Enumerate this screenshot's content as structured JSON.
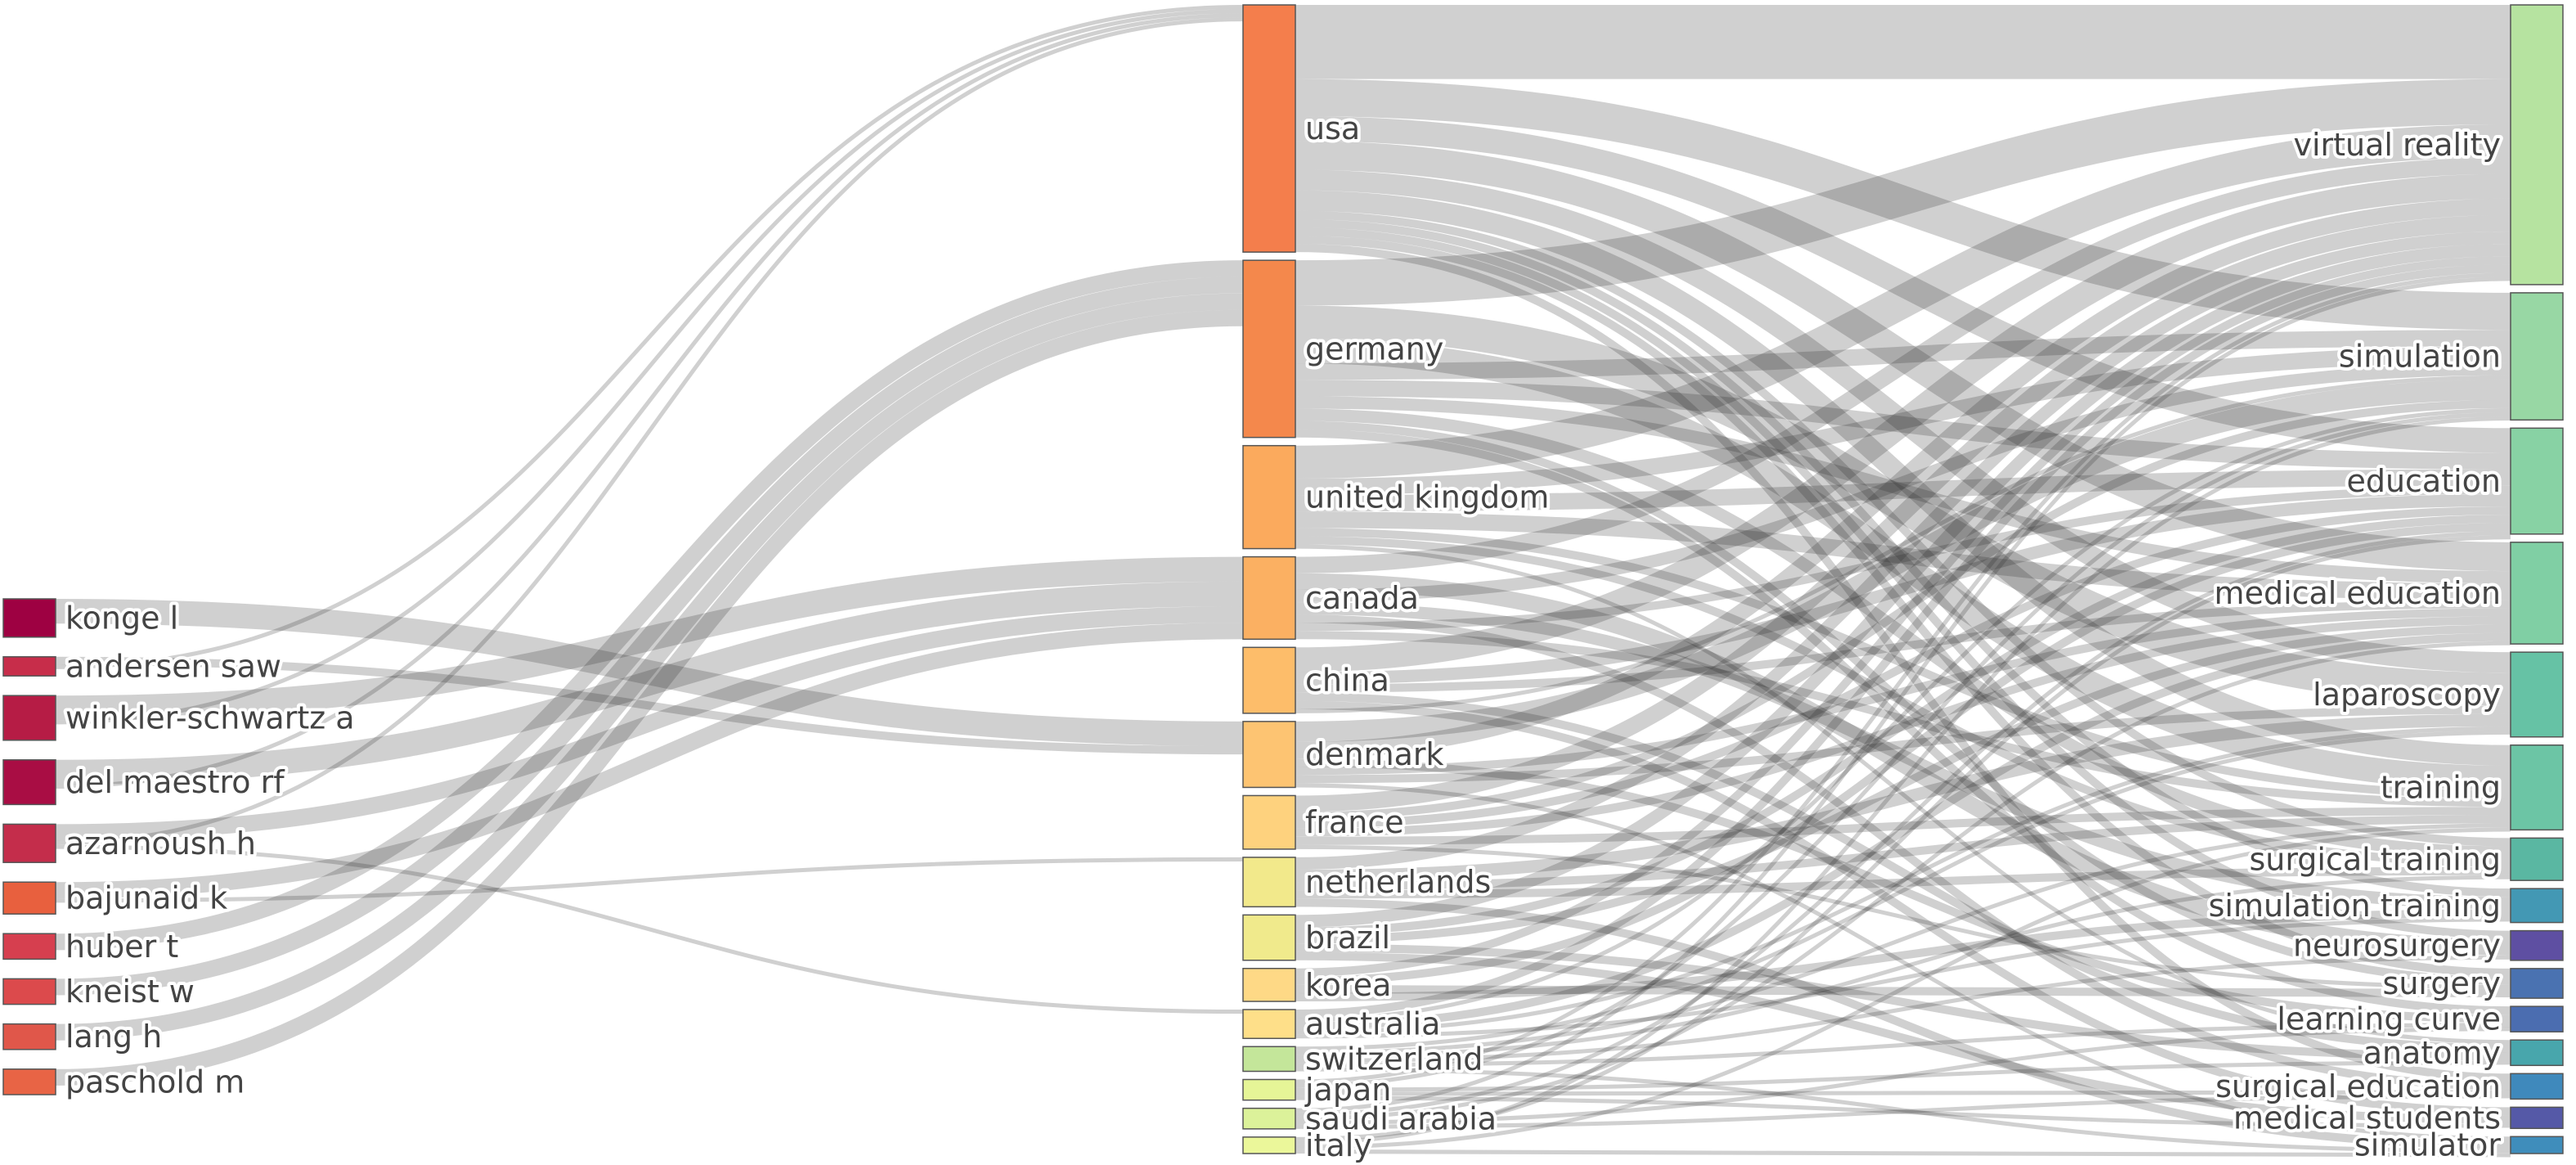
{
  "chart_data": {
    "type": "sankey",
    "columns": [
      "authors",
      "countries",
      "keywords"
    ],
    "nodes": {
      "authors": [
        {
          "id": "konge-l",
          "label": "konge l",
          "value": 6,
          "color": "#9e0142"
        },
        {
          "id": "andersen-saw",
          "label": "andersen saw",
          "value": 3,
          "color": "#c72d4a"
        },
        {
          "id": "winkler-schwartz-a",
          "label": "winkler-schwartz a",
          "value": 7,
          "color": "#b61c45"
        },
        {
          "id": "del-maestro-rf",
          "label": "del maestro rf",
          "value": 7,
          "color": "#a90d44"
        },
        {
          "id": "azarnoush-h",
          "label": "azarnoush h",
          "value": 6,
          "color": "#c42d4b"
        },
        {
          "id": "bajunaid-k",
          "label": "bajunaid k",
          "value": 5,
          "color": "#e8603e"
        },
        {
          "id": "huber-t",
          "label": "huber t",
          "value": 4,
          "color": "#d63f4f"
        },
        {
          "id": "kneist-w",
          "label": "kneist w",
          "value": 4,
          "color": "#dc4a4c"
        },
        {
          "id": "lang-h",
          "label": "lang h",
          "value": 4,
          "color": "#e0574a"
        },
        {
          "id": "paschold-m",
          "label": "paschold m",
          "value": 4,
          "color": "#e86445"
        }
      ],
      "countries": [
        {
          "id": "usa",
          "label": "usa",
          "value": 60,
          "color": "#f47e4c"
        },
        {
          "id": "germany",
          "label": "germany",
          "value": 43,
          "color": "#f4884c"
        },
        {
          "id": "united-kingdom",
          "label": "united kingdom",
          "value": 25,
          "color": "#fbaa5d"
        },
        {
          "id": "canada",
          "label": "canada",
          "value": 20,
          "color": "#fbb062"
        },
        {
          "id": "china",
          "label": "china",
          "value": 16,
          "color": "#fdbd6a"
        },
        {
          "id": "denmark",
          "label": "denmark",
          "value": 16,
          "color": "#fdc472"
        },
        {
          "id": "france",
          "label": "france",
          "value": 13,
          "color": "#fed27e"
        },
        {
          "id": "netherlands",
          "label": "netherlands",
          "value": 12,
          "color": "#f2e98b"
        },
        {
          "id": "brazil",
          "label": "brazil",
          "value": 11,
          "color": "#f0ea8c"
        },
        {
          "id": "korea",
          "label": "korea",
          "value": 8,
          "color": "#fed986"
        },
        {
          "id": "australia",
          "label": "australia",
          "value": 7,
          "color": "#fedf89"
        },
        {
          "id": "switzerland",
          "label": "switzerland",
          "value": 6,
          "color": "#c4e69a"
        },
        {
          "id": "japan",
          "label": "japan",
          "value": 5,
          "color": "#e6f597"
        },
        {
          "id": "saudi-arabia",
          "label": "saudi arabia",
          "value": 5,
          "color": "#dcf29a"
        },
        {
          "id": "italy",
          "label": "italy",
          "value": 4,
          "color": "#ebf79a"
        }
      ],
      "keywords": [
        {
          "id": "virtual-reality",
          "label": "virtual reality",
          "value": 66,
          "color": "#b6e3a0"
        },
        {
          "id": "simulation",
          "label": "simulation",
          "value": 30,
          "color": "#98d7a4"
        },
        {
          "id": "education",
          "label": "education",
          "value": 25,
          "color": "#88d2a4"
        },
        {
          "id": "medical-education",
          "label": "medical education",
          "value": 24,
          "color": "#80cfa4"
        },
        {
          "id": "laparoscopy",
          "label": "laparoscopy",
          "value": 20,
          "color": "#66c2a5"
        },
        {
          "id": "training",
          "label": "training",
          "value": 20,
          "color": "#6cc5a5"
        },
        {
          "id": "surgical-training",
          "label": "surgical training",
          "value": 10,
          "color": "#5ab7a2"
        },
        {
          "id": "simulation-training",
          "label": "simulation training",
          "value": 8,
          "color": "#4398b4"
        },
        {
          "id": "neurosurgery",
          "label": "neurosurgery",
          "value": 7,
          "color": "#5e4fa2"
        },
        {
          "id": "surgery",
          "label": "surgery",
          "value": 7,
          "color": "#4a72b1"
        },
        {
          "id": "learning-curve",
          "label": "learning curve",
          "value": 6,
          "color": "#4b6db0"
        },
        {
          "id": "anatomy",
          "label": "anatomy",
          "value": 6,
          "color": "#48a6ac"
        },
        {
          "id": "surgical-education",
          "label": "surgical education",
          "value": 6,
          "color": "#3f89bc"
        },
        {
          "id": "medical-students",
          "label": "medical students",
          "value": 5,
          "color": "#5559a7"
        },
        {
          "id": "simulator",
          "label": "simulator",
          "value": 4,
          "color": "#3f8dbb"
        }
      ]
    },
    "links": [
      {
        "source": "konge-l",
        "target": "denmark",
        "value": 6
      },
      {
        "source": "andersen-saw",
        "target": "denmark",
        "value": 2
      },
      {
        "source": "andersen-saw",
        "target": "usa",
        "value": 1
      },
      {
        "source": "winkler-schwartz-a",
        "target": "canada",
        "value": 6
      },
      {
        "source": "winkler-schwartz-a",
        "target": "usa",
        "value": 1
      },
      {
        "source": "del-maestro-rf",
        "target": "canada",
        "value": 6
      },
      {
        "source": "del-maestro-rf",
        "target": "usa",
        "value": 1
      },
      {
        "source": "azarnoush-h",
        "target": "canada",
        "value": 4
      },
      {
        "source": "azarnoush-h",
        "target": "usa",
        "value": 1
      },
      {
        "source": "azarnoush-h",
        "target": "australia",
        "value": 1
      },
      {
        "source": "bajunaid-k",
        "target": "canada",
        "value": 4
      },
      {
        "source": "bajunaid-k",
        "target": "netherlands",
        "value": 1
      },
      {
        "source": "huber-t",
        "target": "germany",
        "value": 4
      },
      {
        "source": "kneist-w",
        "target": "germany",
        "value": 4
      },
      {
        "source": "lang-h",
        "target": "germany",
        "value": 4
      },
      {
        "source": "paschold-m",
        "target": "germany",
        "value": 4
      },
      {
        "source": "usa",
        "target": "virtual-reality",
        "value": 18
      },
      {
        "source": "usa",
        "target": "simulation",
        "value": 9
      },
      {
        "source": "usa",
        "target": "education",
        "value": 6
      },
      {
        "source": "usa",
        "target": "medical-education",
        "value": 7
      },
      {
        "source": "usa",
        "target": "laparoscopy",
        "value": 5
      },
      {
        "source": "usa",
        "target": "training",
        "value": 5
      },
      {
        "source": "usa",
        "target": "surgical-training",
        "value": 2
      },
      {
        "source": "usa",
        "target": "simulation-training",
        "value": 2
      },
      {
        "source": "usa",
        "target": "neurosurgery",
        "value": 2
      },
      {
        "source": "usa",
        "target": "surgery",
        "value": 2
      },
      {
        "source": "usa",
        "target": "surgical-education",
        "value": 2
      },
      {
        "source": "germany",
        "target": "virtual-reality",
        "value": 11
      },
      {
        "source": "germany",
        "target": "laparoscopy",
        "value": 8
      },
      {
        "source": "germany",
        "target": "training",
        "value": 6
      },
      {
        "source": "germany",
        "target": "simulation",
        "value": 4
      },
      {
        "source": "germany",
        "target": "education",
        "value": 4
      },
      {
        "source": "germany",
        "target": "medical-education",
        "value": 3
      },
      {
        "source": "germany",
        "target": "surgical-training",
        "value": 3
      },
      {
        "source": "germany",
        "target": "surgery",
        "value": 2
      },
      {
        "source": "germany",
        "target": "learning-curve",
        "value": 2
      },
      {
        "source": "united-kingdom",
        "target": "virtual-reality",
        "value": 8
      },
      {
        "source": "united-kingdom",
        "target": "simulation",
        "value": 4
      },
      {
        "source": "united-kingdom",
        "target": "education",
        "value": 4
      },
      {
        "source": "united-kingdom",
        "target": "medical-education",
        "value": 4
      },
      {
        "source": "united-kingdom",
        "target": "training",
        "value": 2
      },
      {
        "source": "united-kingdom",
        "target": "surgical-training",
        "value": 2
      },
      {
        "source": "united-kingdom",
        "target": "anatomy",
        "value": 1
      },
      {
        "source": "canada",
        "target": "virtual-reality",
        "value": 4
      },
      {
        "source": "canada",
        "target": "neurosurgery",
        "value": 4
      },
      {
        "source": "canada",
        "target": "simulation",
        "value": 3
      },
      {
        "source": "canada",
        "target": "simulation-training",
        "value": 3
      },
      {
        "source": "canada",
        "target": "surgical-education",
        "value": 2
      },
      {
        "source": "canada",
        "target": "education",
        "value": 2
      },
      {
        "source": "canada",
        "target": "training",
        "value": 2
      },
      {
        "source": "china",
        "target": "virtual-reality",
        "value": 6
      },
      {
        "source": "china",
        "target": "education",
        "value": 3
      },
      {
        "source": "china",
        "target": "medical-education",
        "value": 2
      },
      {
        "source": "china",
        "target": "anatomy",
        "value": 2
      },
      {
        "source": "china",
        "target": "medical-students",
        "value": 2
      },
      {
        "source": "china",
        "target": "simulation",
        "value": 1
      },
      {
        "source": "denmark",
        "target": "simulation",
        "value": 5
      },
      {
        "source": "denmark",
        "target": "virtual-reality",
        "value": 4
      },
      {
        "source": "denmark",
        "target": "learning-curve",
        "value": 2
      },
      {
        "source": "denmark",
        "target": "medical-education",
        "value": 2
      },
      {
        "source": "denmark",
        "target": "laparoscopy",
        "value": 2
      },
      {
        "source": "denmark",
        "target": "simulator",
        "value": 1
      },
      {
        "source": "france",
        "target": "virtual-reality",
        "value": 4
      },
      {
        "source": "france",
        "target": "simulation",
        "value": 2
      },
      {
        "source": "france",
        "target": "education",
        "value": 2
      },
      {
        "source": "france",
        "target": "medical-education",
        "value": 2
      },
      {
        "source": "france",
        "target": "training",
        "value": 2
      },
      {
        "source": "france",
        "target": "surgery",
        "value": 1
      },
      {
        "source": "netherlands",
        "target": "virtual-reality",
        "value": 3
      },
      {
        "source": "netherlands",
        "target": "laparoscopy",
        "value": 3
      },
      {
        "source": "netherlands",
        "target": "training",
        "value": 2
      },
      {
        "source": "netherlands",
        "target": "surgical-training",
        "value": 2
      },
      {
        "source": "netherlands",
        "target": "simulator",
        "value": 2
      },
      {
        "source": "brazil",
        "target": "virtual-reality",
        "value": 3
      },
      {
        "source": "brazil",
        "target": "education",
        "value": 2
      },
      {
        "source": "brazil",
        "target": "medical-education",
        "value": 2
      },
      {
        "source": "brazil",
        "target": "anatomy",
        "value": 2
      },
      {
        "source": "brazil",
        "target": "medical-students",
        "value": 2
      },
      {
        "source": "korea",
        "target": "virtual-reality",
        "value": 2
      },
      {
        "source": "korea",
        "target": "education",
        "value": 2
      },
      {
        "source": "korea",
        "target": "surgery",
        "value": 2
      },
      {
        "source": "korea",
        "target": "simulation-training",
        "value": 2
      },
      {
        "source": "australia",
        "target": "virtual-reality",
        "value": 2
      },
      {
        "source": "australia",
        "target": "simulation",
        "value": 1
      },
      {
        "source": "australia",
        "target": "medical-education",
        "value": 2
      },
      {
        "source": "australia",
        "target": "laparoscopy",
        "value": 1
      },
      {
        "source": "australia",
        "target": "simulation-training",
        "value": 1
      },
      {
        "source": "switzerland",
        "target": "laparoscopy",
        "value": 1
      },
      {
        "source": "switzerland",
        "target": "training",
        "value": 1
      },
      {
        "source": "switzerland",
        "target": "surgical-training",
        "value": 1
      },
      {
        "source": "switzerland",
        "target": "neurosurgery",
        "value": 1
      },
      {
        "source": "switzerland",
        "target": "learning-curve",
        "value": 1
      },
      {
        "source": "switzerland",
        "target": "simulator",
        "value": 1
      },
      {
        "source": "japan",
        "target": "virtual-reality",
        "value": 1
      },
      {
        "source": "japan",
        "target": "simulation",
        "value": 1
      },
      {
        "source": "japan",
        "target": "anatomy",
        "value": 1
      },
      {
        "source": "japan",
        "target": "surgical-education",
        "value": 1
      },
      {
        "source": "japan",
        "target": "medical-students",
        "value": 1
      },
      {
        "source": "saudi-arabia",
        "target": "virtual-reality",
        "value": 1
      },
      {
        "source": "saudi-arabia",
        "target": "education",
        "value": 1
      },
      {
        "source": "saudi-arabia",
        "target": "medical-education",
        "value": 1
      },
      {
        "source": "saudi-arabia",
        "target": "learning-curve",
        "value": 1
      },
      {
        "source": "saudi-arabia",
        "target": "surgical-education",
        "value": 1
      },
      {
        "source": "italy",
        "target": "education",
        "value": 1
      },
      {
        "source": "italy",
        "target": "simulation",
        "value": 1
      },
      {
        "source": "italy",
        "target": "training",
        "value": 1
      },
      {
        "source": "italy",
        "target": "simulator",
        "value": 1
      }
    ]
  }
}
